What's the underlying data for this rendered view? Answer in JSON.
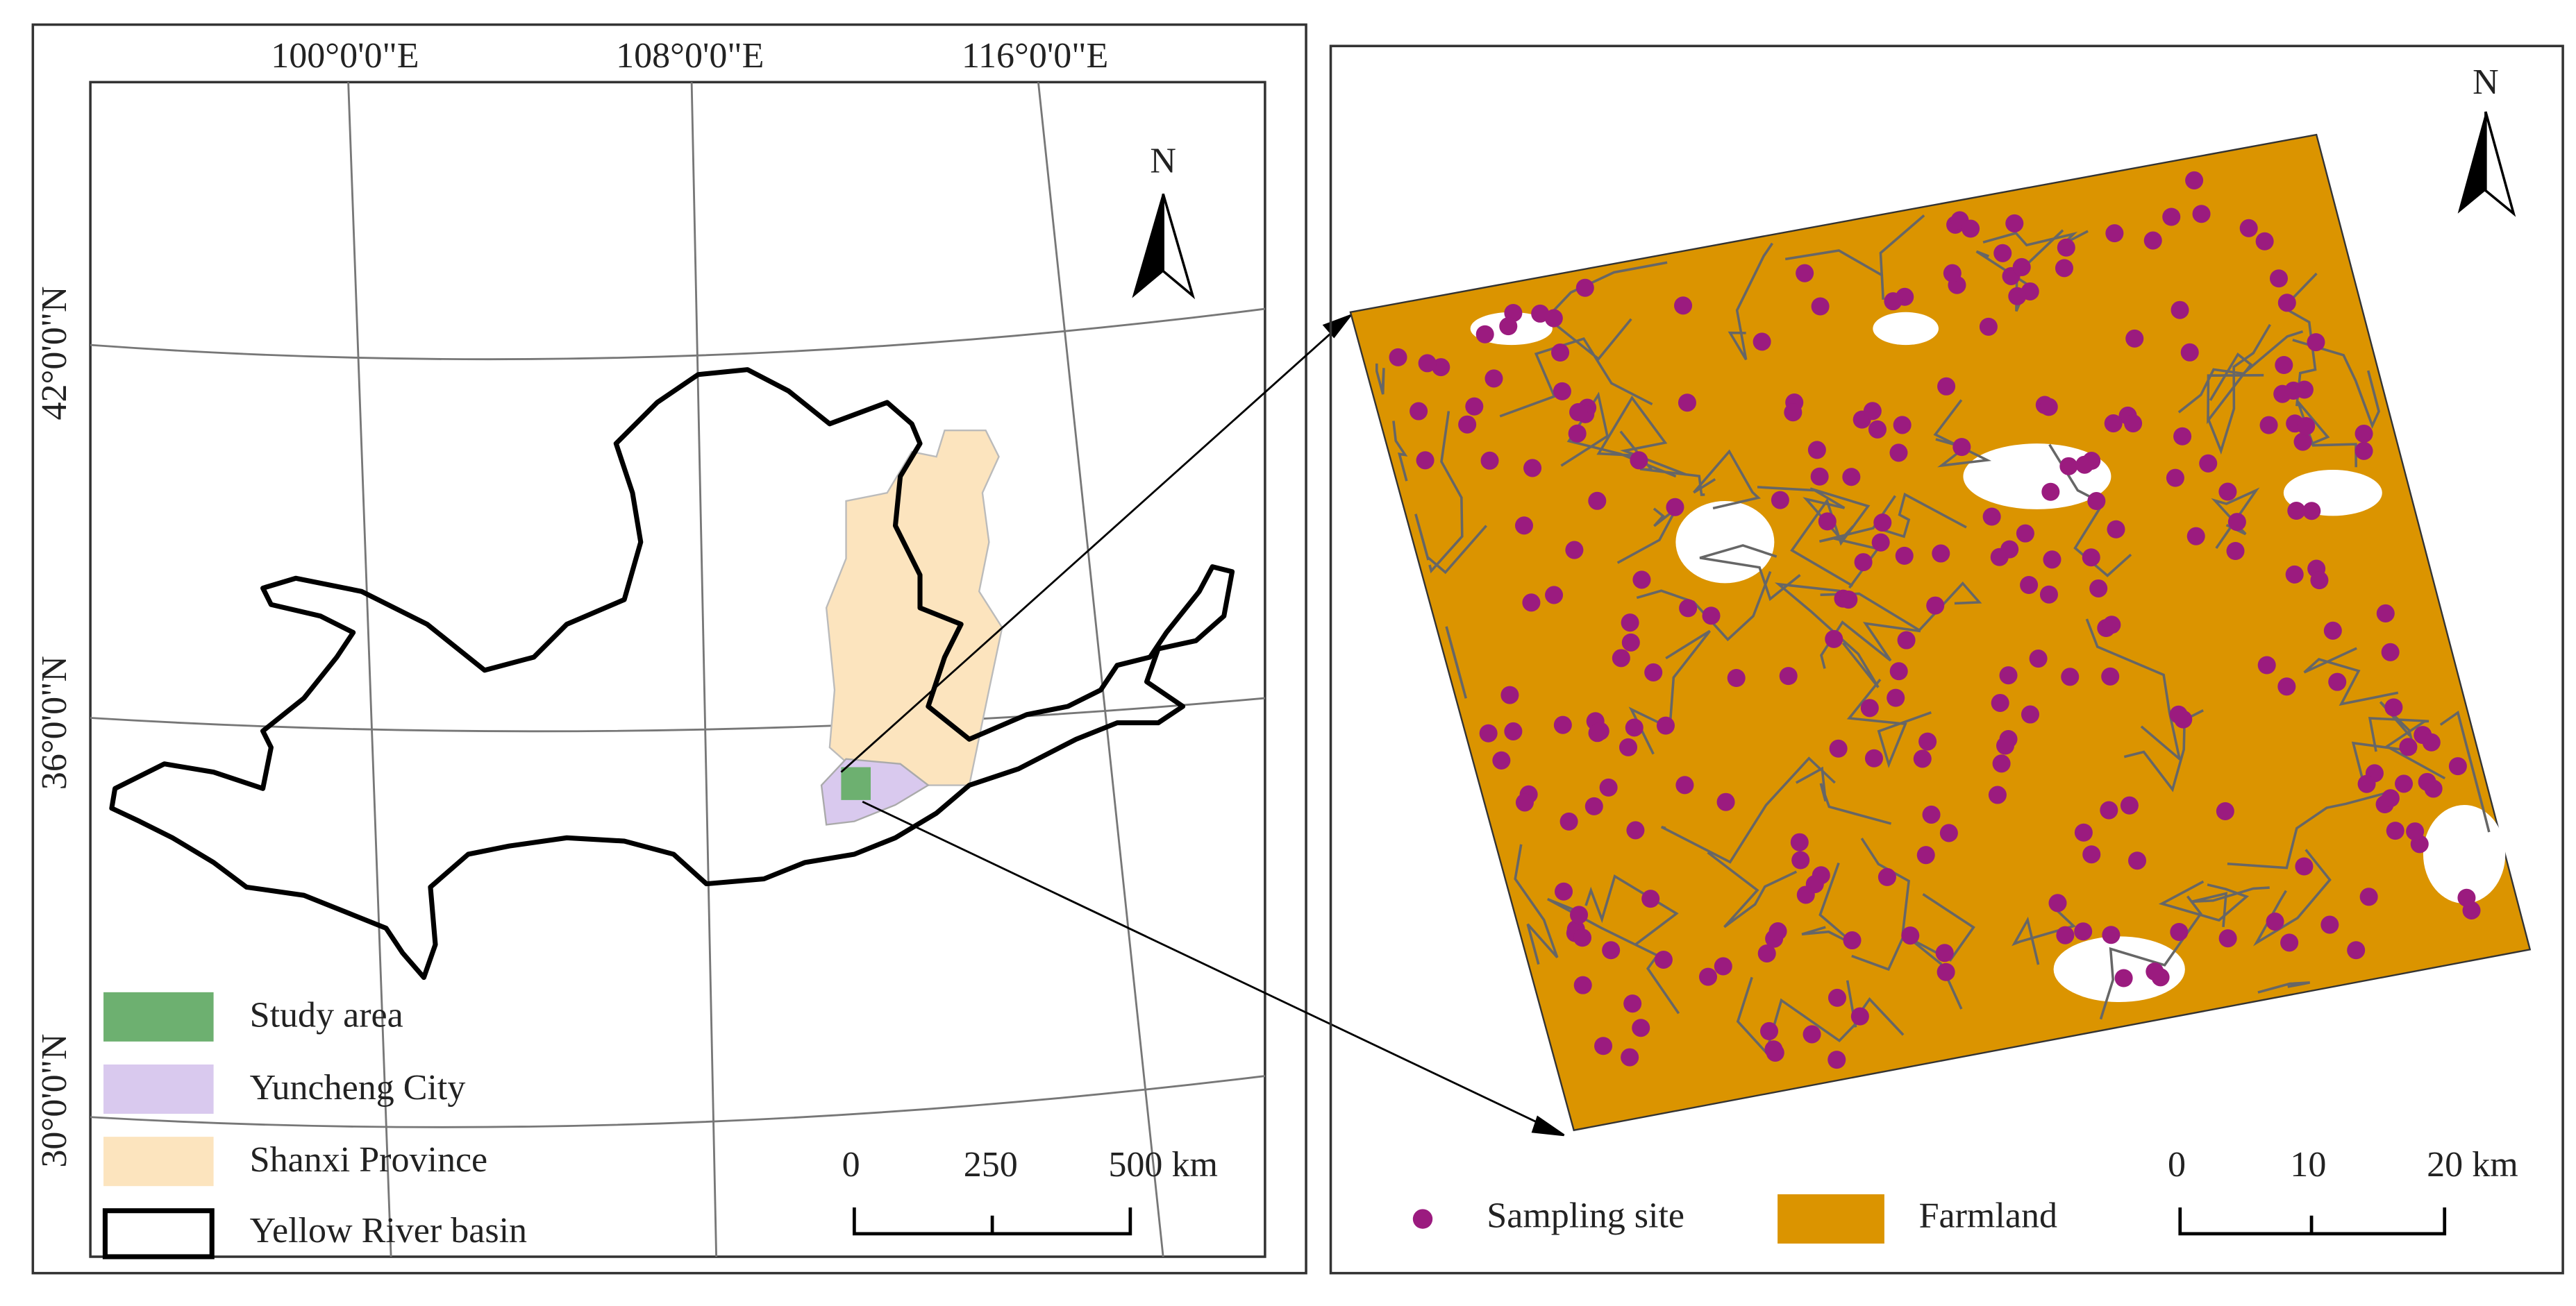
{
  "left_map": {
    "longitude_labels": [
      "100°0'0\"E",
      "108°0'0\"E",
      "116°0'0\"E"
    ],
    "latitude_labels": [
      "42°0'0\"N",
      "36°0'0\"N",
      "30°0'0\"N"
    ],
    "north": "N",
    "legend": [
      "Study area",
      "Yuncheng City",
      "Shanxi Province",
      "Yellow River basin"
    ],
    "scale_bar": [
      "0",
      "250",
      "500 km"
    ]
  },
  "right_map": {
    "north": "N",
    "legend": [
      "Sampling site",
      "Farmland"
    ],
    "scale_bar": [
      "0",
      "10",
      "20 km"
    ]
  }
}
